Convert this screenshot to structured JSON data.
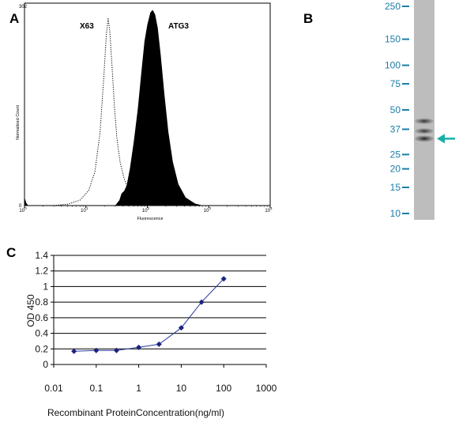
{
  "panels": {
    "a": "A",
    "b": "B",
    "c": "C"
  },
  "colors": {
    "histogram_fill": "#000000",
    "blot_tick_color": "#1a7ea8",
    "blot_lane": "#bdbdbd",
    "arrow": "#17b0a8",
    "elisa_line": "#2a3a9e",
    "elisa_marker": "#1a237e"
  },
  "chart_data": [
    {
      "id": "A",
      "type": "area",
      "title": "",
      "xlabel": "Fluorescence",
      "ylabel": "Normalized Count",
      "x_scale": "log",
      "xlim": [
        1,
        10000
      ],
      "ylim": [
        0,
        302
      ],
      "y_top_tick": "302",
      "x_ticks": [
        {
          "value": 1,
          "base": "10",
          "exp": "0"
        },
        {
          "value": 10,
          "base": "10",
          "exp": "1"
        },
        {
          "value": 100,
          "base": "10",
          "exp": "2"
        },
        {
          "value": 1000,
          "base": "10",
          "exp": "3"
        },
        {
          "value": 10000,
          "base": "10",
          "exp": "4"
        }
      ],
      "y_zero_tick": "0",
      "series": [
        {
          "name": "X63",
          "style": "dotted",
          "points": [
            [
              3,
              0
            ],
            [
              5,
              2
            ],
            [
              8,
              8
            ],
            [
              11,
              22
            ],
            [
              14,
              50
            ],
            [
              17,
              110
            ],
            [
              19.5,
              190
            ],
            [
              21.5,
              255
            ],
            [
              23,
              280
            ],
            [
              24.5,
              260
            ],
            [
              26.5,
              210
            ],
            [
              29,
              150
            ],
            [
              32,
              100
            ],
            [
              36,
              65
            ],
            [
              42,
              40
            ],
            [
              50,
              22
            ],
            [
              60,
              10
            ],
            [
              70,
              4
            ]
          ]
        },
        {
          "name": "ATG3",
          "style": "filled",
          "points": [
            [
              30,
              0
            ],
            [
              35,
              8
            ],
            [
              38,
              18
            ],
            [
              42,
              22
            ],
            [
              46,
              30
            ],
            [
              52,
              55
            ],
            [
              60,
              95
            ],
            [
              70,
              145
            ],
            [
              80,
              200
            ],
            [
              90,
              245
            ],
            [
              100,
              270
            ],
            [
              112,
              288
            ],
            [
              122,
              292
            ],
            [
              134,
              285
            ],
            [
              148,
              265
            ],
            [
              165,
              225
            ],
            [
              190,
              165
            ],
            [
              220,
              110
            ],
            [
              260,
              65
            ],
            [
              320,
              32
            ],
            [
              420,
              12
            ],
            [
              600,
              3
            ],
            [
              800,
              0
            ]
          ]
        }
      ],
      "spike": [
        [
          1,
          0
        ],
        [
          1,
          12
        ],
        [
          1.07,
          4
        ],
        [
          1.15,
          0
        ]
      ]
    },
    {
      "id": "B",
      "type": "western-blot",
      "title": "",
      "unit": "kDa",
      "markers": [
        "250",
        "150",
        "100",
        "75",
        "50",
        "37",
        "25",
        "20",
        "15",
        "10"
      ],
      "marker_values": [
        250,
        150,
        100,
        75,
        50,
        37,
        25,
        20,
        15,
        10
      ],
      "bands_kda": [
        {
          "kda": 42,
          "intensity": 0.75
        },
        {
          "kda": 36,
          "intensity": 0.7
        },
        {
          "kda": 32,
          "intensity": 1.0
        }
      ],
      "arrow_kda": 32
    },
    {
      "id": "C",
      "type": "line",
      "title": "",
      "xlabel": "Recombinant ProteinConcentration(ng/ml)",
      "ylabel": "OD 450",
      "x_scale": "log",
      "xlim": [
        0.01,
        1000
      ],
      "ylim": [
        0,
        1.4
      ],
      "x_ticks": [
        0.01,
        0.1,
        1,
        10,
        100,
        1000
      ],
      "x_tick_labels": [
        "0.01",
        "0.1",
        "1",
        "10",
        "100",
        "1000"
      ],
      "y_ticks": [
        0,
        0.2,
        0.4,
        0.6,
        0.8,
        1,
        1.2,
        1.4
      ],
      "y_tick_labels": [
        "0",
        "0.2",
        "0.4",
        "0.6",
        "0.8",
        "1",
        "1.2",
        "1.4"
      ],
      "grid": true,
      "series": [
        {
          "name": "ATG3",
          "x": [
            0.03,
            0.1,
            0.3,
            1,
            3,
            10,
            30,
            100
          ],
          "y": [
            0.17,
            0.18,
            0.18,
            0.22,
            0.26,
            0.47,
            0.8,
            1.1
          ]
        }
      ]
    }
  ]
}
